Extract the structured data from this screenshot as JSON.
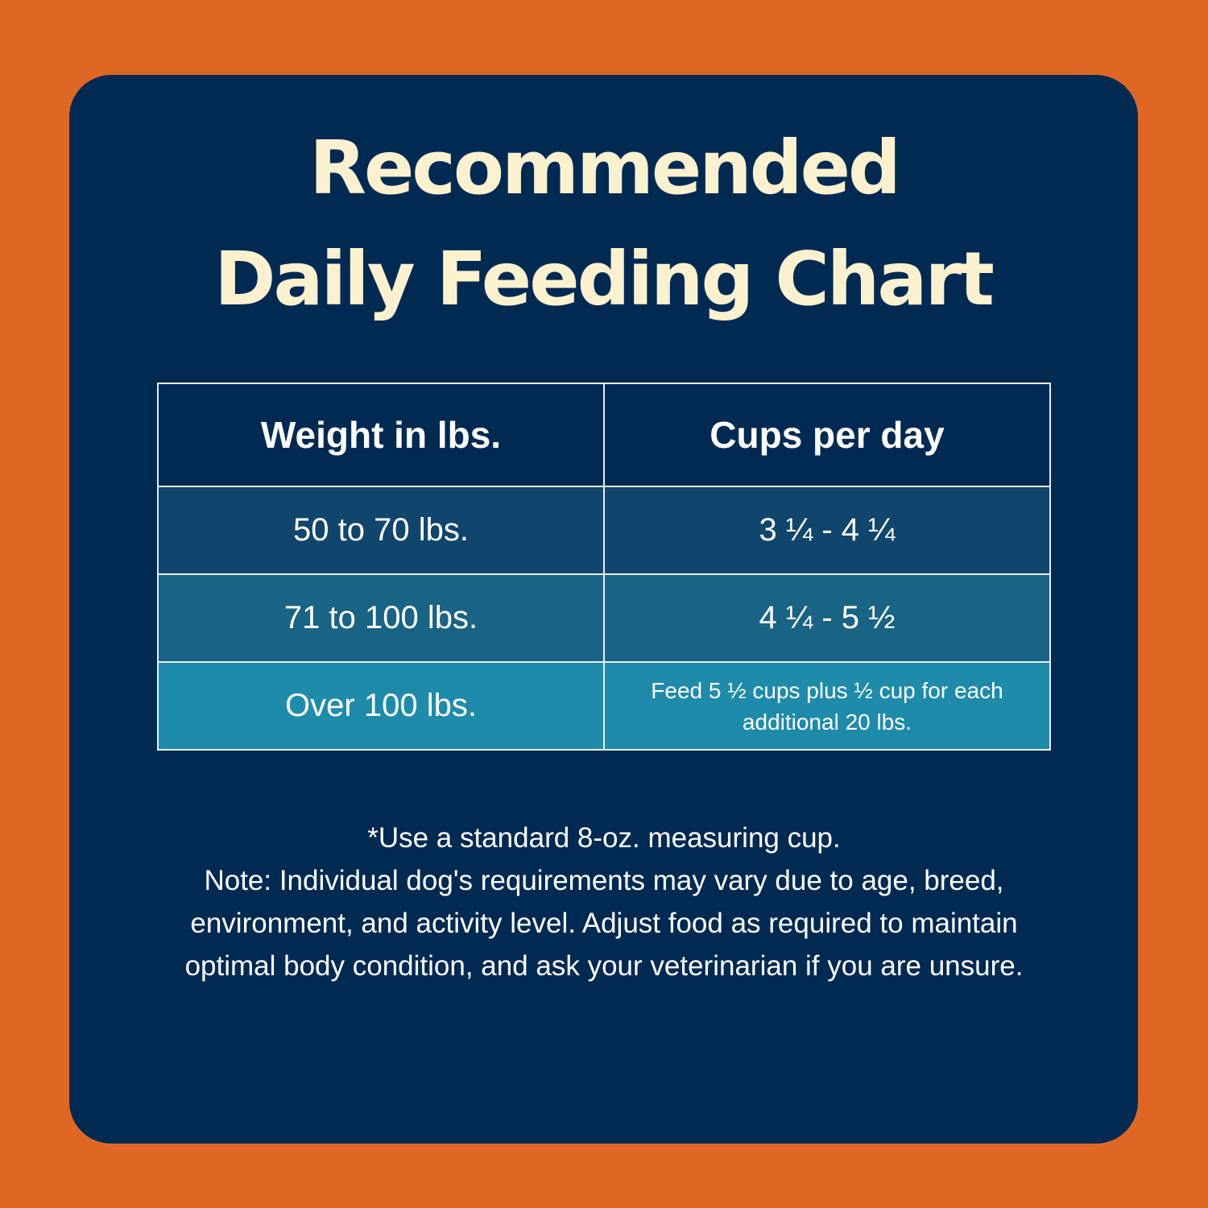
{
  "title": {
    "line1": "Recommended",
    "line2": "Daily Feeding Chart"
  },
  "table": {
    "headers": [
      "Weight in lbs.",
      "Cups per day"
    ],
    "rows": [
      [
        "50 to 70 lbs.",
        "3 ¼ - 4 ¼"
      ],
      [
        "71 to 100 lbs.",
        "4 ¼ - 5 ½"
      ],
      [
        "Over 100 lbs.",
        "Feed 5 ½ cups plus ½ cup for each additional 20 lbs."
      ]
    ]
  },
  "notes": {
    "line1": "*Use a standard 8-oz. measuring cup.",
    "line2": "Note: Individual dog's requirements may vary due to age, breed, environment, and activity level. Adjust food as required to maintain optimal body condition, and ask your veterinarian if you are unsure."
  },
  "colors": {
    "background": "#de6823",
    "panel": "#002a52",
    "title": "#fbf1cf",
    "row1": "#10456c",
    "row2": "#196384",
    "row3": "#1e8bab"
  }
}
